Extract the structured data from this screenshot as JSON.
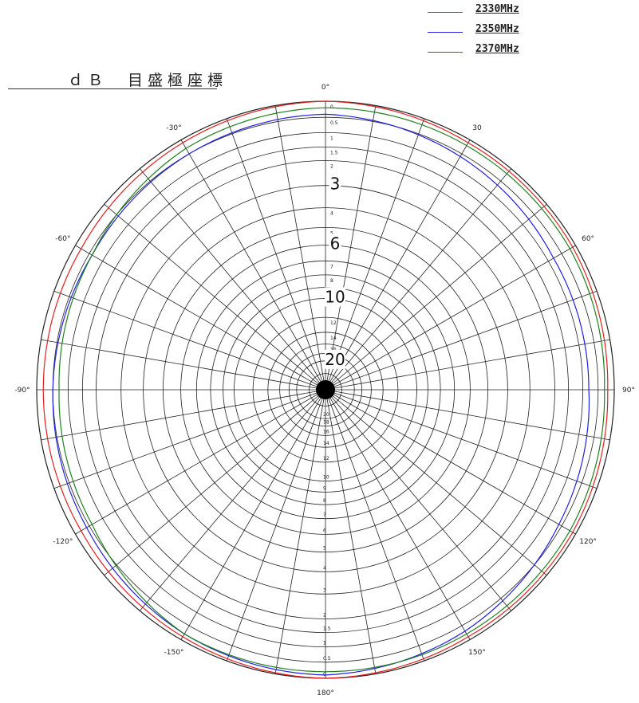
{
  "chart_data": {
    "type": "line",
    "subtype": "polar",
    "title": "ｄＢ　目盛極座標",
    "legend_position": "top-right",
    "angle_labels": [
      {
        "deg": 0,
        "text": "0°"
      },
      {
        "deg": 30,
        "text": "30"
      },
      {
        "deg": 60,
        "text": "60°"
      },
      {
        "deg": 90,
        "text": "90°"
      },
      {
        "deg": 120,
        "text": "120°"
      },
      {
        "deg": 150,
        "text": "150°"
      },
      {
        "deg": 180,
        "text": "180°"
      },
      {
        "deg": -150,
        "text": "-150°"
      },
      {
        "deg": -120,
        "text": "-120°"
      },
      {
        "deg": -90,
        "text": "-90°"
      },
      {
        "deg": -60,
        "text": "-60°"
      },
      {
        "deg": -30,
        "text": "-30°"
      }
    ],
    "radial_db_labels": [
      "0",
      "0.5",
      "1",
      "1.5",
      "2",
      "3",
      "4",
      "5",
      "6",
      "7",
      "8",
      "9",
      "10",
      "12",
      "14",
      "16",
      "18",
      "20"
    ],
    "radial_big_labels": [
      "3",
      "6",
      "10",
      "20"
    ],
    "series": [
      {
        "name": "2330MHz",
        "color": "#e02020",
        "angles": [
          0,
          30,
          60,
          90,
          120,
          150,
          180,
          -150,
          -120,
          -90,
          -60,
          -30
        ],
        "db": [
          0,
          -0.1,
          -0.1,
          -0.2,
          -0.1,
          -0.1,
          0,
          -0.1,
          -0.2,
          -0.2,
          -0.2,
          -0.1
        ]
      },
      {
        "name": "2350MHz",
        "color": "#2020e0",
        "angles": [
          0,
          30,
          60,
          90,
          120,
          150,
          180,
          -150,
          -120,
          -90,
          -60,
          -30
        ],
        "db": [
          -0.4,
          -0.6,
          -0.8,
          -0.8,
          -0.6,
          -0.3,
          -0.1,
          -0.2,
          -0.4,
          -0.5,
          -0.6,
          -0.5
        ]
      },
      {
        "name": "2370MHz",
        "color": "#208020",
        "angles": [
          0,
          30,
          60,
          90,
          120,
          150,
          180,
          -150,
          -120,
          -90,
          -60,
          -30
        ],
        "db": [
          -0.2,
          -0.2,
          -0.2,
          -0.3,
          -0.2,
          -0.2,
          -0.2,
          -0.2,
          -0.6,
          -0.7,
          -0.6,
          -0.3
        ]
      }
    ]
  }
}
